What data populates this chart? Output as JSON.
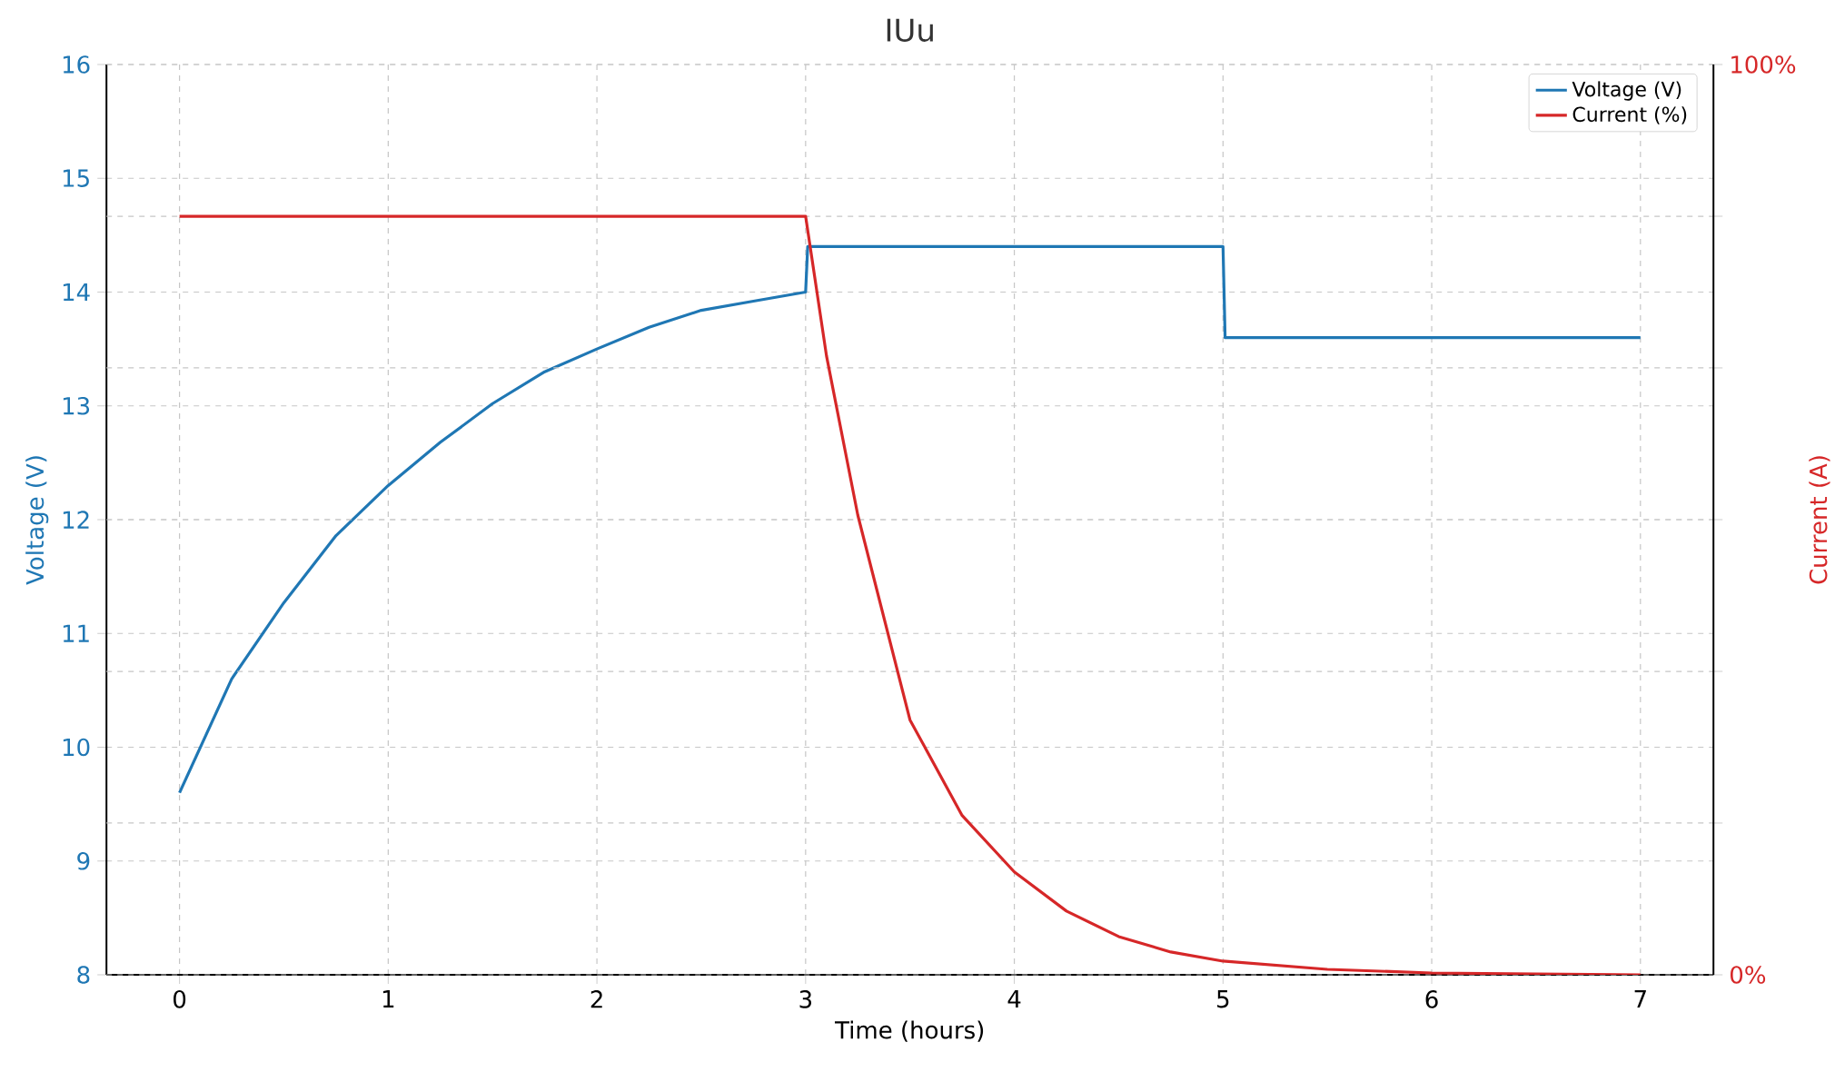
{
  "chart_data": {
    "type": "line",
    "title": "IUu",
    "xlabel": "Time (hours)",
    "ylabel": "Voltage (V)",
    "y2label": "Current (A)",
    "xlim": [
      -0.35,
      7.35
    ],
    "xticks": [
      0,
      1,
      2,
      3,
      4,
      5,
      6,
      7
    ],
    "ylim": [
      8,
      16
    ],
    "yticks": [
      8,
      9,
      10,
      11,
      12,
      13,
      14,
      15,
      16
    ],
    "y2lim": [
      0,
      100
    ],
    "y2ticks": [
      {
        "value": 0,
        "label": "0%"
      },
      {
        "value": 16.67,
        "label": null
      },
      {
        "value": 33.33,
        "label": null
      },
      {
        "value": 50,
        "label": null
      },
      {
        "value": 66.67,
        "label": null
      },
      {
        "value": 83.33,
        "label": null
      },
      {
        "value": 100,
        "label": "100%"
      }
    ],
    "grid": true,
    "legend": "top right",
    "series": [
      {
        "name": "Voltage (V)",
        "color": "#1f77b4",
        "axis": "y",
        "x": [
          0,
          0.25,
          0.5,
          0.75,
          1,
          1.25,
          1.5,
          1.75,
          2,
          2.25,
          2.5,
          2.75,
          3,
          3.01,
          5,
          5.01,
          7
        ],
        "values": [
          9.6,
          10.6,
          11.27,
          11.86,
          12.3,
          12.68,
          13.02,
          13.3,
          13.5,
          13.69,
          13.84,
          13.92,
          14.0,
          14.4,
          14.4,
          13.6,
          13.6
        ]
      },
      {
        "name": "Current (%)",
        "color": "#d62728",
        "axis": "y2",
        "x": [
          0,
          3,
          3.1,
          3.25,
          3.5,
          3.75,
          4,
          4.25,
          4.5,
          4.75,
          5,
          5.5,
          6,
          6.5,
          7
        ],
        "values": [
          83.33,
          83.33,
          68,
          50.5,
          28,
          17.5,
          11.3,
          7,
          4.2,
          2.5,
          1.5,
          0.6,
          0.2,
          0.1,
          0
        ]
      }
    ]
  }
}
